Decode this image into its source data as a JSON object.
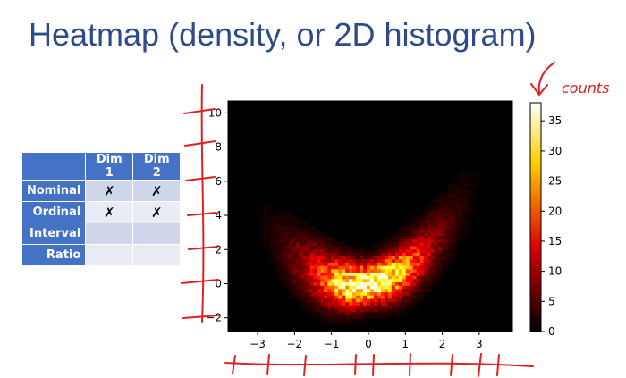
{
  "title": "Heatmap (density, or 2D histogram)",
  "table": {
    "headers": [
      "",
      "Dim 1",
      "Dim 2"
    ],
    "rows": [
      {
        "label": "Nominal",
        "dim1": "✗",
        "dim2": "✗"
      },
      {
        "label": "Ordinal",
        "dim1": "✗",
        "dim2": "✗"
      },
      {
        "label": "Interval",
        "dim1": "",
        "dim2": ""
      },
      {
        "label": "Ratio",
        "dim1": "",
        "dim2": ""
      }
    ]
  },
  "annotation": "counts",
  "chart_data": {
    "type": "heatmap",
    "title": "",
    "xlabel": "",
    "ylabel": "",
    "xlim": [
      -3.8,
      3.9
    ],
    "ylim": [
      -2.8,
      10.7
    ],
    "xticks": [
      -3,
      -2,
      -1,
      0,
      1,
      2,
      3
    ],
    "yticks": [
      -2,
      0,
      2,
      4,
      6,
      8,
      10
    ],
    "colorbar": {
      "label": "",
      "range": [
        0,
        38
      ],
      "ticks": [
        0,
        5,
        10,
        15,
        20,
        25,
        30,
        35
      ]
    },
    "density": "bivariate cloud concentrated along y ≈ x² curve, peak near (0, 0)",
    "peak_count": 37,
    "colormap": "hot",
    "colors": {
      "low": "#000000",
      "mid": "#e03000",
      "high": "#ffffff"
    }
  }
}
